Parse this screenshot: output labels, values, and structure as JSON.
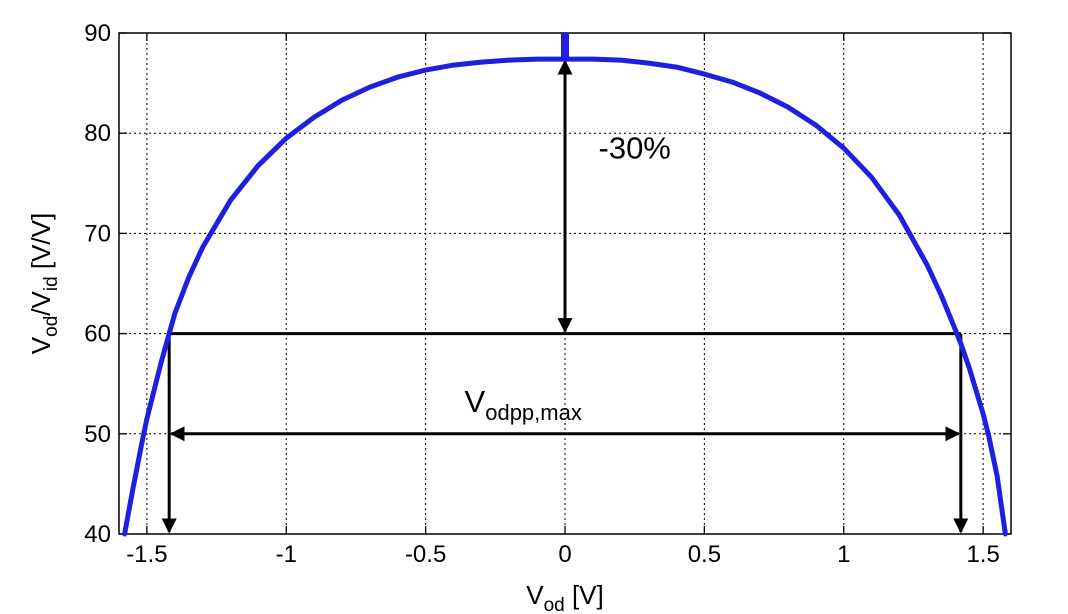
{
  "chart_data": {
    "type": "line",
    "title": "",
    "xlabel": {
      "main": "V",
      "sub": "od",
      "unit": " [V]"
    },
    "ylabel": {
      "main1": "V",
      "sub1": "od",
      "sep": "/V",
      "sub2": "id",
      "unit": " [V/V]"
    },
    "xlim": [
      -1.6,
      1.6
    ],
    "ylim": [
      40,
      90
    ],
    "grid": true,
    "xticks": [
      -1.5,
      -1,
      -0.5,
      0,
      0.5,
      1,
      1.5
    ],
    "xtick_labels": [
      "-1.5",
      "-1",
      "-0.5",
      "0",
      "0.5",
      "1",
      "1.5"
    ],
    "yticks": [
      40,
      50,
      60,
      70,
      80,
      90
    ],
    "ytick_labels": [
      "40",
      "50",
      "60",
      "70",
      "80",
      "90"
    ],
    "series": [
      {
        "color": "#1f1fe0",
        "x": [
          -1.58,
          -1.55,
          -1.52,
          -1.5,
          -1.45,
          -1.42,
          -1.4,
          -1.35,
          -1.3,
          -1.2,
          -1.1,
          -1.0,
          -0.9,
          -0.8,
          -0.7,
          -0.6,
          -0.5,
          -0.4,
          -0.3,
          -0.2,
          -0.1,
          0,
          0.1,
          0.2,
          0.3,
          0.4,
          0.5,
          0.6,
          0.7,
          0.8,
          0.9,
          1.0,
          1.1,
          1.2,
          1.3,
          1.35,
          1.4,
          1.42,
          1.45,
          1.5,
          1.52,
          1.55,
          1.58
        ],
        "y": [
          40.0,
          44.5,
          48.8,
          51.5,
          57.0,
          60.0,
          62.0,
          65.6,
          68.6,
          73.3,
          76.8,
          79.5,
          81.6,
          83.3,
          84.6,
          85.6,
          86.3,
          86.8,
          87.1,
          87.3,
          87.4,
          87.4,
          87.4,
          87.3,
          87.0,
          86.6,
          85.9,
          85.1,
          84.0,
          82.6,
          80.8,
          78.5,
          75.6,
          71.8,
          66.8,
          63.8,
          60.4,
          59.0,
          56.6,
          52.0,
          49.8,
          45.8,
          40.0
        ]
      }
    ],
    "annotations": [
      {
        "text": "-30%",
        "x": 0.25,
        "y": 77.5
      },
      {
        "text_main": "V",
        "text_sub": "odpp,max",
        "x": -0.15,
        "y": 52.2
      }
    ],
    "reference_lines": {
      "level_y": 60,
      "x_left": -1.42,
      "x_right": 1.42,
      "peak_y": 87.4,
      "span_arrow_y": 50
    }
  }
}
